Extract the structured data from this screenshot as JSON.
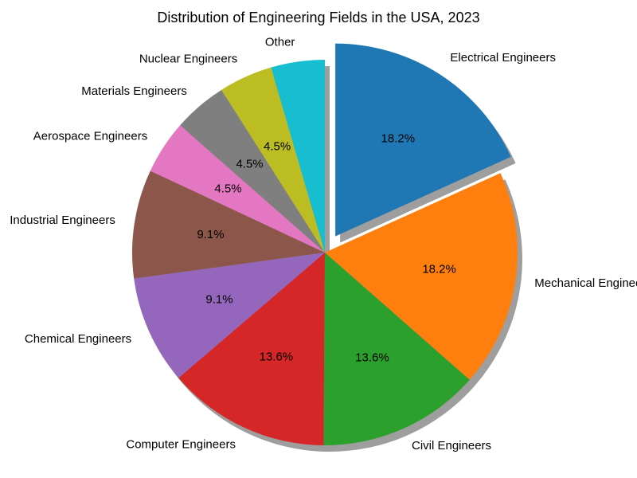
{
  "chart_data": {
    "type": "pie",
    "title": "Distribution of Engineering Fields in the USA, 2023",
    "labels": [
      "Electrical Engineers",
      "Mechanical Engineers",
      "Civil Engineers",
      "Computer Engineers",
      "Chemical Engineers",
      "Industrial Engineers",
      "Aerospace Engineers",
      "Materials Engineers",
      "Nuclear Engineers",
      "Other"
    ],
    "values": [
      18.2,
      18.2,
      13.6,
      13.6,
      9.1,
      9.1,
      4.5,
      4.5,
      4.5,
      4.5
    ],
    "value_labels": [
      "18.2%",
      "18.2%",
      "13.6%",
      "13.6%",
      "9.1%",
      "9.1%",
      "4.5%",
      "4.5%",
      "4.5%",
      ""
    ],
    "colors": [
      "#1f77b4",
      "#ff7f0e",
      "#2ca02c",
      "#d62728",
      "#9467bd",
      "#8c564b",
      "#e377c2",
      "#7f7f7f",
      "#bcbd22",
      "#17becf"
    ],
    "exploded": [
      true,
      false,
      false,
      false,
      false,
      false,
      false,
      false,
      false,
      false
    ],
    "start_angle_deg": 90,
    "direction": "clockwise",
    "shadow": true
  }
}
